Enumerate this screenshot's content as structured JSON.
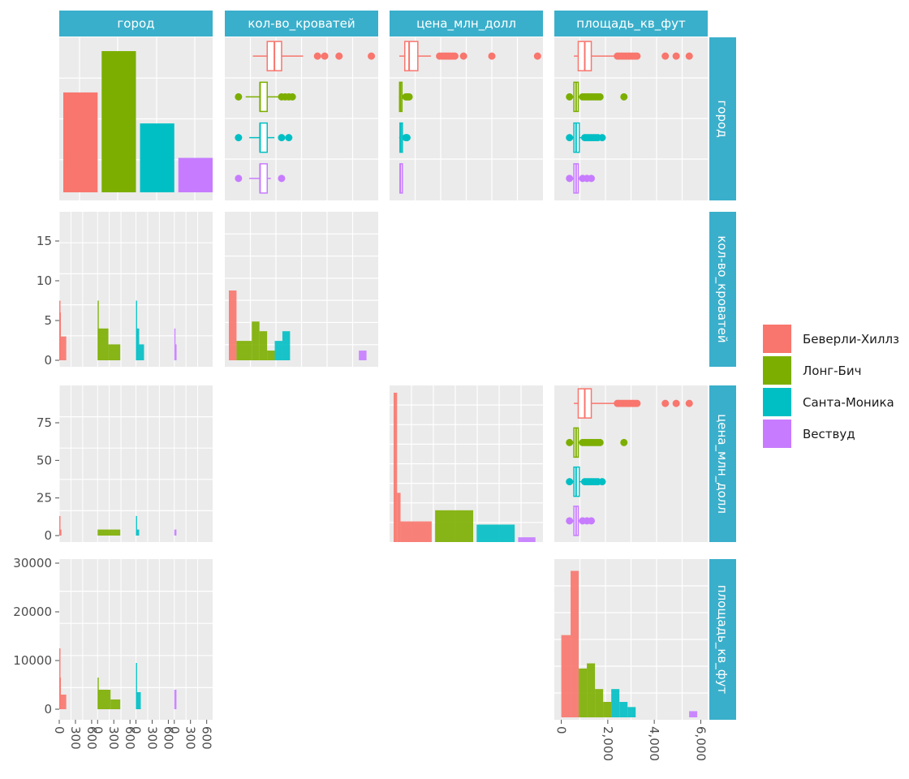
{
  "chart_data": {
    "type": "pairs",
    "variables": [
      "город",
      "кол-во_кроватей",
      "цена_млн_долл",
      "площадь_кв_фут"
    ],
    "legend": {
      "placement": "right",
      "entries": [
        {
          "name": "Беверли-Хиллз",
          "color": "#F8766D"
        },
        {
          "name": "Лонг-Бич",
          "color": "#7CAE00"
        },
        {
          "name": "Санта-Моника",
          "color": "#00BFC4"
        },
        {
          "name": "Вествуд",
          "color": "#C77CFF"
        }
      ]
    },
    "city_counts": [
      {
        "city": "Беверли-Хиллз",
        "count": 290
      },
      {
        "city": "Лонг-Бич",
        "count": 410
      },
      {
        "city": "Санта-Моника",
        "count": 200
      },
      {
        "city": "Вествуд",
        "count": 100
      }
    ],
    "count_axis": {
      "ticks": [
        "0",
        "300",
        "600"
      ],
      "range": [
        0,
        650
      ]
    },
    "beds": {
      "ticks": [
        "0",
        "5",
        "10",
        "15"
      ],
      "range": [
        -1,
        19
      ],
      "boxplots": [
        {
          "city": "Беверли-Хиллз",
          "min": 2,
          "q1": 4,
          "median": 5,
          "q3": 6,
          "max": 9,
          "outliers": [
            11,
            12,
            14,
            18.5
          ]
        },
        {
          "city": "Лонг-Бич",
          "min": 1,
          "q1": 3,
          "median": 3,
          "q3": 4,
          "max": 5.5,
          "outliers": [
            0,
            6,
            6.5,
            7,
            7.5
          ]
        },
        {
          "city": "Санта-Моника",
          "min": 1.5,
          "q1": 3,
          "median": 3,
          "q3": 4,
          "max": 5,
          "outliers": [
            0,
            6,
            7
          ]
        },
        {
          "city": "Вествуд",
          "min": 1.5,
          "q1": 3,
          "median": 3,
          "q3": 4,
          "max": 4.5,
          "outliers": [
            0,
            6
          ]
        }
      ],
      "histogram": [
        {
          "bin": [
            0,
            1
          ],
          "count": 9,
          "fill": "Беверли-Хиллз"
        },
        {
          "bin": [
            1,
            3
          ],
          "count": 2.5,
          "fill": "Лонг-Бич"
        },
        {
          "bin": [
            3,
            4
          ],
          "count": 5,
          "fill": "Лонг-Бич"
        },
        {
          "bin": [
            4,
            5
          ],
          "count": 3.75,
          "fill": "Лонг-Бич"
        },
        {
          "bin": [
            5,
            6
          ],
          "count": 1.25,
          "fill": "Лонг-Бич"
        },
        {
          "bin": [
            6,
            7
          ],
          "count": 2.5,
          "fill": "Санта-Моника"
        },
        {
          "bin": [
            7,
            8
          ],
          "count": 3.75,
          "fill": "Санта-Моника"
        },
        {
          "bin": [
            17,
            18
          ],
          "count": 1.25,
          "fill": "Вествуд"
        }
      ],
      "facet_histograms": [
        {
          "city": "Беверли-Хиллз",
          "bars": [
            {
              "range": [
                0,
                5
              ],
              "value": 7.5
            },
            {
              "range": [
                5,
                30
              ],
              "value": 6
            },
            {
              "range": [
                30,
                130
              ],
              "value": 3
            }
          ]
        },
        {
          "city": "Лонг-Бич",
          "bars": [
            {
              "range": [
                0,
                5
              ],
              "value": 7.5
            },
            {
              "range": [
                5,
                200
              ],
              "value": 4
            },
            {
              "range": [
                200,
                420
              ],
              "value": 2
            }
          ]
        },
        {
          "city": "Санта-Моника",
          "bars": [
            {
              "range": [
                0,
                5
              ],
              "value": 7.5
            },
            {
              "range": [
                5,
                60
              ],
              "value": 4
            },
            {
              "range": [
                60,
                150
              ],
              "value": 2
            }
          ]
        },
        {
          "city": "Вествуд",
          "bars": [
            {
              "range": [
                0,
                20
              ],
              "value": 4
            },
            {
              "range": [
                20,
                40
              ],
              "value": 2
            }
          ]
        }
      ]
    },
    "price": {
      "ticks": [
        "0",
        "25",
        "50",
        "75"
      ],
      "range": [
        -4,
        97
      ],
      "boxplots": [
        {
          "city": "Беверли-Хиллз",
          "min": 0.5,
          "q1": 3,
          "median": 5,
          "q3": 9,
          "max": 15,
          "outliers": [
            19,
            20,
            21,
            22,
            23,
            24,
            25,
            26,
            30,
            43,
            64
          ]
        },
        {
          "city": "Лонг-Бич",
          "min": 0.3,
          "q1": 0.6,
          "median": 1,
          "q3": 1.5,
          "max": 3,
          "outliers": [
            3.5,
            4,
            4.5,
            5
          ]
        },
        {
          "city": "Санта-Моника",
          "min": 0.4,
          "q1": 0.8,
          "median": 1.2,
          "q3": 1.8,
          "max": 3,
          "outliers": [
            3.5,
            4
          ]
        },
        {
          "city": "Вествуд",
          "min": 0.5,
          "q1": 0.8,
          "median": 1,
          "q3": 1.5,
          "max": 2,
          "outliers": []
        }
      ],
      "histogram": [
        {
          "bin": [
            0,
            1
          ],
          "count": 94,
          "fill": "Беверли-Хиллз"
        },
        {
          "bin": [
            1,
            2
          ],
          "count": 31,
          "fill": "Беверли-Хиллз"
        },
        {
          "bin": [
            2,
            11
          ],
          "count": 13,
          "fill": "Беверли-Хиллз"
        },
        {
          "bin": [
            12,
            23
          ],
          "count": 20,
          "fill": "Лонг-Бич"
        },
        {
          "bin": [
            24,
            35
          ],
          "count": 11,
          "fill": "Санта-Моника"
        },
        {
          "bin": [
            36,
            41
          ],
          "count": 3,
          "fill": "Вествуд"
        }
      ],
      "facet_histograms": [
        {
          "city": "Беверли-Хиллз",
          "bars": [
            {
              "range": [
                0,
                5
              ],
              "value": 13
            },
            {
              "range": [
                5,
                40
              ],
              "value": 4
            }
          ]
        },
        {
          "city": "Лонг-Бич",
          "bars": [
            {
              "range": [
                0,
                420
              ],
              "value": 4
            }
          ]
        },
        {
          "city": "Санта-Моника",
          "bars": [
            {
              "range": [
                0,
                5
              ],
              "value": 13
            },
            {
              "range": [
                5,
                60
              ],
              "value": 4
            }
          ]
        },
        {
          "city": "Вествуд",
          "bars": [
            {
              "range": [
                0,
                40
              ],
              "value": 4
            }
          ]
        }
      ]
    },
    "sqft": {
      "ticks": [
        "0",
        "10000",
        "20000",
        "30000"
      ],
      "range": [
        -1500,
        31000
      ],
      "boxplots": [
        {
          "city": "Беверли-Хиллз",
          "min": 300,
          "q1": 500,
          "median": 800,
          "q3": 1100,
          "max": 2200,
          "outliers": [
            2300,
            2400,
            2500,
            2600,
            2700,
            2800,
            2900,
            3000,
            3100,
            3200,
            4500,
            5000,
            5600
          ]
        },
        {
          "city": "Лонг-Бич",
          "min": 200,
          "q1": 300,
          "median": 400,
          "q3": 500,
          "max": 600,
          "outliers": [
            100,
            700,
            800,
            900,
            1000,
            1100,
            1200,
            1300,
            1400,
            1500,
            2600
          ]
        },
        {
          "city": "Санта-Моника",
          "min": 200,
          "q1": 300,
          "median": 400,
          "q3": 550,
          "max": 700,
          "outliers": [
            100,
            800,
            900,
            1000,
            1100,
            1200,
            1300,
            1400,
            1600
          ]
        },
        {
          "city": "Вествуд",
          "min": 200,
          "q1": 300,
          "median": 400,
          "q3": 500,
          "max": 550,
          "outliers": [
            100,
            700,
            900,
            1100
          ]
        }
      ],
      "x_ticks": [
        "0",
        "2,000",
        "4,000",
        "6,000"
      ],
      "x_range": [
        -300,
        6300
      ],
      "histogram": [
        {
          "bin": [
            0,
            400
          ],
          "count": 16000,
          "fill": "Беверли-Хиллз"
        },
        {
          "bin": [
            400,
            750
          ],
          "count": 28500,
          "fill": "Беверли-Хиллз"
        },
        {
          "bin": [
            750,
            1100
          ],
          "count": 9500,
          "fill": "Лонг-Бич"
        },
        {
          "bin": [
            1100,
            1450
          ],
          "count": 10500,
          "fill": "Лонг-Бич"
        },
        {
          "bin": [
            1450,
            1800
          ],
          "count": 5500,
          "fill": "Лонг-Бич"
        },
        {
          "bin": [
            1800,
            2150
          ],
          "count": 3000,
          "fill": "Лонг-Бич"
        },
        {
          "bin": [
            2150,
            2500
          ],
          "count": 5500,
          "fill": "Санта-Моника"
        },
        {
          "bin": [
            2500,
            2850
          ],
          "count": 3000,
          "fill": "Санта-Моника"
        },
        {
          "bin": [
            2850,
            3200
          ],
          "count": 2000,
          "fill": "Санта-Моника"
        },
        {
          "bin": [
            5500,
            5850
          ],
          "count": 1200,
          "fill": "Вествуд"
        }
      ],
      "facet_histograms": [
        {
          "city": "Беверли-Хиллз",
          "bars": [
            {
              "range": [
                0,
                5
              ],
              "value": 12500
            },
            {
              "range": [
                5,
                30
              ],
              "value": 6500
            },
            {
              "range": [
                30,
                130
              ],
              "value": 3000
            }
          ]
        },
        {
          "city": "Лонг-Бич",
          "bars": [
            {
              "range": [
                0,
                5
              ],
              "value": 6500
            },
            {
              "range": [
                5,
                240
              ],
              "value": 4000
            },
            {
              "range": [
                240,
                420
              ],
              "value": 2000
            }
          ]
        },
        {
          "city": "Санта-Моника",
          "bars": [
            {
              "range": [
                0,
                5
              ],
              "value": 9500
            },
            {
              "range": [
                5,
                90
              ],
              "value": 3500
            }
          ]
        },
        {
          "city": "Вествуд",
          "bars": [
            {
              "range": [
                0,
                40
              ],
              "value": 4000
            }
          ]
        }
      ]
    }
  }
}
